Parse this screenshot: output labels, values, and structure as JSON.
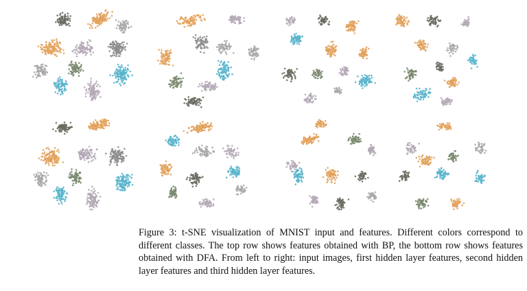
{
  "figure": {
    "caption_label": "Figure 3:",
    "caption_text": "t-SNE visualization of MNIST input and features. Different colors correspond to different classes. The top row shows features obtained with BP, the bottom row shows features obtained with DFA. From left to right: input images, first hidden layer features, second hidden layer features and third hidden layer features.",
    "rows": [
      "BP",
      "DFA"
    ],
    "columns": [
      "input images",
      "first hidden layer features",
      "second hidden layer features",
      "third hidden layer features"
    ],
    "colors": {
      "orange": "#e2a25c",
      "cyan": "#5ab5cc",
      "dark_gray": "#6b6b62",
      "green_gray": "#7a8a6e",
      "mauve": "#b4a8b6",
      "light_gray": "#a9a9a9",
      "gray": "#8d8d8d"
    }
  }
}
